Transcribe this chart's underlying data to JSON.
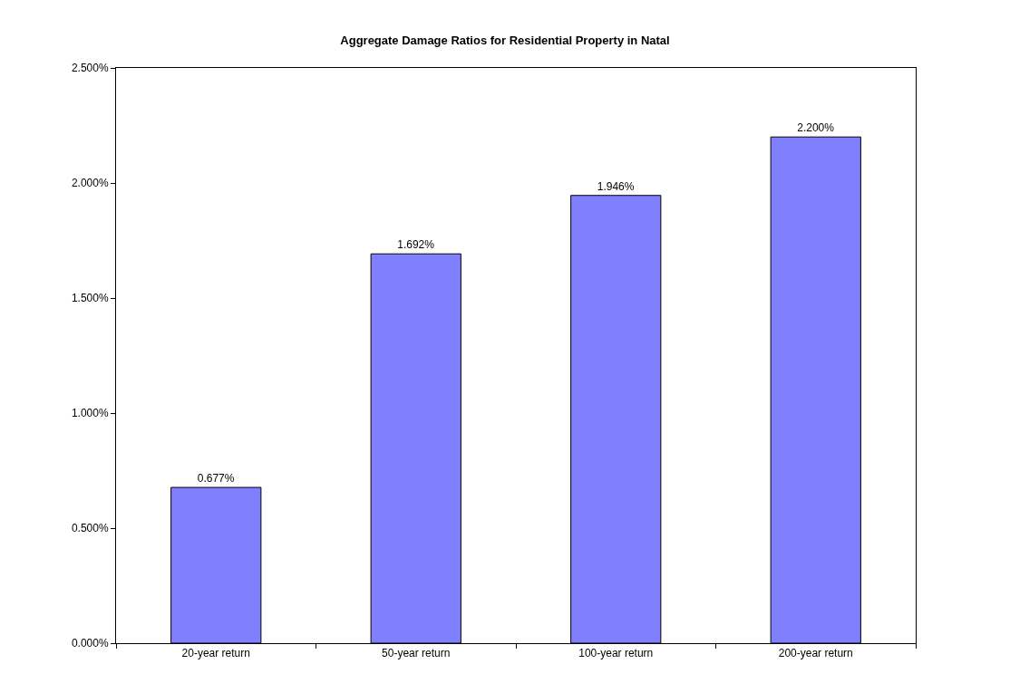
{
  "chart_data": {
    "type": "bar",
    "title": "Aggregate Damage Ratios for Residential Property in Natal",
    "categories": [
      "20-year return",
      "50-year return",
      "100-year return",
      "200-year return"
    ],
    "values": [
      0.677,
      1.692,
      1.946,
      2.2
    ],
    "value_labels": [
      "0.677%",
      "1.692%",
      "1.946%",
      "2.200%"
    ],
    "color": "#8080ff",
    "ylim": [
      0,
      2.5
    ],
    "yticks": [
      {
        "value": 0,
        "label": "0.000%"
      },
      {
        "value": 0.5,
        "label": "0.500%"
      },
      {
        "value": 1,
        "label": "1.000%"
      },
      {
        "value": 1.5,
        "label": "1.500%"
      },
      {
        "value": 2,
        "label": "2.000%"
      },
      {
        "value": 2.5,
        "label": "2.500%"
      }
    ],
    "grid": false
  }
}
